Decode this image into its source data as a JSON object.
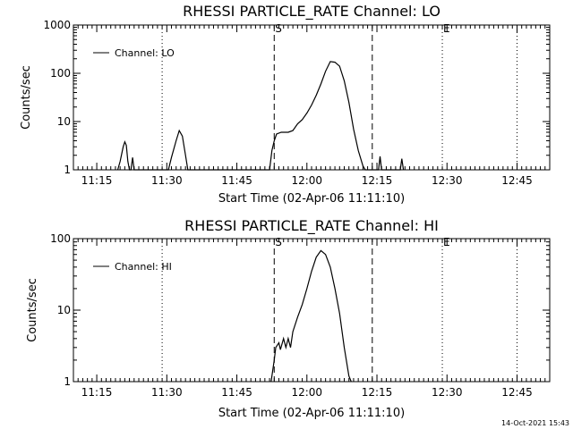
{
  "footer": {
    "timestamp": "14-Oct-2021 15:43"
  },
  "chart_data": [
    {
      "type": "line",
      "title": "RHESSI PARTICLE_RATE Channel: LO",
      "xlabel": "Start Time (02-Apr-06 11:11:10)",
      "ylabel": "Counts/sec",
      "yscale": "log",
      "xlim": [
        "11:10",
        "12:52"
      ],
      "ylim": [
        1,
        1000
      ],
      "xticks": [
        "11:15",
        "11:30",
        "11:45",
        "12:00",
        "12:15",
        "12:30",
        "12:45"
      ],
      "yticks": [
        "1",
        "10",
        "100",
        "1000"
      ],
      "grid": false,
      "legend": {
        "position": "top-left",
        "entries": [
          "Channel: LO"
        ]
      },
      "markers": [
        {
          "time": "11:29",
          "style": "dotted",
          "label": ""
        },
        {
          "time": "11:53",
          "style": "dashed",
          "label": "S"
        },
        {
          "time": "12:14",
          "style": "dashed",
          "label": ""
        },
        {
          "time": "12:29",
          "style": "dotted",
          "label": "E"
        },
        {
          "time": "12:45",
          "style": "dotted",
          "label": ""
        }
      ],
      "series": [
        {
          "name": "Channel: LO",
          "points": [
            [
              "11:19:30",
              1
            ],
            [
              "11:20:00",
              1.5
            ],
            [
              "11:20:40",
              3
            ],
            [
              "11:21:00",
              3.8
            ],
            [
              "11:21:20",
              3.2
            ],
            [
              "11:21:40",
              1.5
            ],
            [
              "11:22:00",
              1
            ],
            [
              "11:22:20",
              1
            ],
            [
              "11:22:40",
              1.8
            ],
            [
              "11:23:00",
              1
            ],
            [
              "11:30:20",
              1
            ],
            [
              "11:31:00",
              1.8
            ],
            [
              "11:32:00",
              4
            ],
            [
              "11:32:40",
              6.5
            ],
            [
              "11:33:20",
              5
            ],
            [
              "11:34:00",
              2
            ],
            [
              "11:34:30",
              1
            ],
            [
              "11:52:00",
              1
            ],
            [
              "11:52:30",
              2.5
            ],
            [
              "11:53:00",
              4
            ],
            [
              "11:53:30",
              5.5
            ],
            [
              "11:54:30",
              6
            ],
            [
              "11:56:00",
              6
            ],
            [
              "11:57:00",
              6.5
            ],
            [
              "11:58:00",
              9
            ],
            [
              "11:59:00",
              11
            ],
            [
              "12:00:00",
              15
            ],
            [
              "12:01:00",
              22
            ],
            [
              "12:02:00",
              35
            ],
            [
              "12:03:00",
              60
            ],
            [
              "12:04:00",
              110
            ],
            [
              "12:05:00",
              175
            ],
            [
              "12:06:00",
              170
            ],
            [
              "12:07:00",
              140
            ],
            [
              "12:08:00",
              70
            ],
            [
              "12:09:00",
              25
            ],
            [
              "12:10:00",
              7
            ],
            [
              "12:11:00",
              2.5
            ],
            [
              "12:12:00",
              1.2
            ],
            [
              "12:12:30",
              1
            ],
            [
              "12:15:20",
              1
            ],
            [
              "12:15:40",
              1.9
            ],
            [
              "12:16:00",
              1
            ],
            [
              "12:20:00",
              1
            ],
            [
              "12:20:20",
              1.7
            ],
            [
              "12:20:40",
              1
            ]
          ]
        }
      ]
    },
    {
      "type": "line",
      "title": "RHESSI PARTICLE_RATE Channel: HI",
      "xlabel": "Start Time (02-Apr-06 11:11:10)",
      "ylabel": "Counts/sec",
      "yscale": "log",
      "xlim": [
        "11:10",
        "12:52"
      ],
      "ylim": [
        1,
        100
      ],
      "xticks": [
        "11:15",
        "11:30",
        "11:45",
        "12:00",
        "12:15",
        "12:30",
        "12:45"
      ],
      "yticks": [
        "1",
        "10",
        "100"
      ],
      "grid": false,
      "legend": {
        "position": "top-left",
        "entries": [
          "Channel: HI"
        ]
      },
      "markers": [
        {
          "time": "11:29",
          "style": "dotted",
          "label": ""
        },
        {
          "time": "11:53",
          "style": "dashed",
          "label": "S"
        },
        {
          "time": "12:14",
          "style": "dashed",
          "label": ""
        },
        {
          "time": "12:29",
          "style": "dotted",
          "label": "E"
        },
        {
          "time": "12:45",
          "style": "dotted",
          "label": ""
        }
      ],
      "series": [
        {
          "name": "Channel: HI",
          "points": [
            [
              "11:52:20",
              1
            ],
            [
              "11:53:00",
              2
            ],
            [
              "11:53:20",
              3
            ],
            [
              "11:54:00",
              3.5
            ],
            [
              "11:54:20",
              2.8
            ],
            [
              "11:55:00",
              4
            ],
            [
              "11:55:30",
              3
            ],
            [
              "11:56:00",
              4
            ],
            [
              "11:56:30",
              3
            ],
            [
              "11:57:00",
              5
            ],
            [
              "11:58:00",
              8
            ],
            [
              "11:59:00",
              12
            ],
            [
              "12:00:00",
              20
            ],
            [
              "12:01:00",
              35
            ],
            [
              "12:02:00",
              55
            ],
            [
              "12:03:00",
              68
            ],
            [
              "12:04:00",
              60
            ],
            [
              "12:05:00",
              40
            ],
            [
              "12:06:00",
              20
            ],
            [
              "12:07:00",
              9
            ],
            [
              "12:08:00",
              3
            ],
            [
              "12:09:00",
              1.2
            ],
            [
              "12:09:30",
              1
            ]
          ]
        }
      ]
    }
  ]
}
